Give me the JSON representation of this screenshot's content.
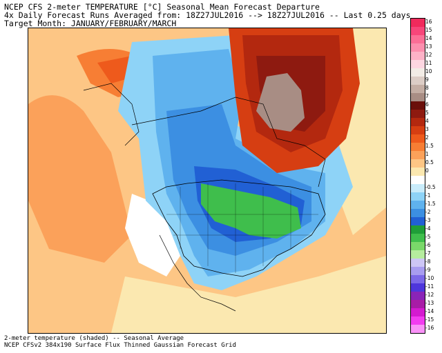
{
  "header": {
    "line1": "NCEP CFS 2-meter TEMPERATURE [°C] Seasonal Mean Forecast Departure",
    "line2": "4x Daily Forecast Runs Averaged from: 18Z27JUL2016 --> 18Z27JUL2016 -- Last 0.25 days",
    "line3": "Target Month: JANUARY/FEBRUARY/MARCH"
  },
  "footer": {
    "line1": "2-meter temperature (shaded) -- Seasonal Average",
    "line2": "NCEP CFSv2 384x190 Surface Flux Thinned Gaussian Forecast Grid"
  },
  "legend": {
    "bins": [
      {
        "label": "16",
        "color": "#f02a5c"
      },
      {
        "label": "15",
        "color": "#f7467a"
      },
      {
        "label": "14",
        "color": "#fb6e96"
      },
      {
        "label": "13",
        "color": "#fc8fae"
      },
      {
        "label": "12",
        "color": "#fdb2c7"
      },
      {
        "label": "11",
        "color": "#fdd6e1"
      },
      {
        "label": "10",
        "color": "#f2ece6"
      },
      {
        "label": "9",
        "color": "#dccdc6"
      },
      {
        "label": "8",
        "color": "#c4aea4"
      },
      {
        "label": "7",
        "color": "#a88d84"
      },
      {
        "label": "6",
        "color": "#6a0f0a"
      },
      {
        "label": "5",
        "color": "#8e1a10"
      },
      {
        "label": "4",
        "color": "#b3280f"
      },
      {
        "label": "3",
        "color": "#d63e12"
      },
      {
        "label": "2",
        "color": "#ee5a1c"
      },
      {
        "label": "1.5",
        "color": "#f77e34"
      },
      {
        "label": "1",
        "color": "#fba15a"
      },
      {
        "label": "0.5",
        "color": "#fdc685"
      },
      {
        "label": "0",
        "color": "#fbe8b0"
      },
      {
        "label": "",
        "color": "#ffffff"
      },
      {
        "label": "-0.5",
        "color": "#c9ecfb"
      },
      {
        "label": "-1",
        "color": "#8ed3f7"
      },
      {
        "label": "-1.5",
        "color": "#5fb2ee"
      },
      {
        "label": "-2",
        "color": "#3c8fe2"
      },
      {
        "label": "-3",
        "color": "#2160d4"
      },
      {
        "label": "-4",
        "color": "#1f9e38"
      },
      {
        "label": "-5",
        "color": "#3fbe4c"
      },
      {
        "label": "-6",
        "color": "#7ad86a"
      },
      {
        "label": "-7",
        "color": "#b6ec9e"
      },
      {
        "label": "-8",
        "color": "#cdc6f5"
      },
      {
        "label": "-9",
        "color": "#a89cf0"
      },
      {
        "label": "-10",
        "color": "#7c68e8"
      },
      {
        "label": "-11",
        "color": "#4e36dc"
      },
      {
        "label": "-12",
        "color": "#8a24b8"
      },
      {
        "label": "-13",
        "color": "#a81ca6"
      },
      {
        "label": "-14",
        "color": "#d41ad0"
      },
      {
        "label": "-15",
        "color": "#f23cf0"
      },
      {
        "label": "-16",
        "color": "#fa92f8"
      }
    ]
  }
}
